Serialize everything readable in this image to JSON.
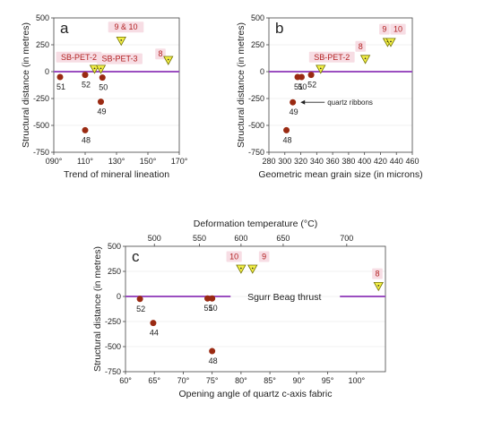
{
  "colors": {
    "thrust_line": "#9b4fc0",
    "circle_fill": "#9a2a12",
    "triangle_fill": "#f4f046",
    "triangle_stroke": "#707000",
    "label_box": "#f7dde4",
    "red_text": "#b22222",
    "axis": "#444444",
    "grid": "#e6e6e6"
  },
  "chart_data": [
    {
      "id": "a",
      "type": "scatter",
      "panel_letter": "a",
      "xlabel": "Trend of mineral lineation",
      "ylabel": "Structural distance (in metres)",
      "xlim": [
        90,
        170
      ],
      "ylim": [
        -750,
        500
      ],
      "x_ticks": [
        90,
        110,
        130,
        150,
        170
      ],
      "x_tick_labels": [
        "090°",
        "110°",
        "130°",
        "150°",
        "170°"
      ],
      "y_ticks": [
        500,
        250,
        0,
        -250,
        -500,
        -750
      ],
      "thrust_y": 0,
      "circles": [
        {
          "x": 94,
          "y": -50,
          "label": "51"
        },
        {
          "x": 110,
          "y": -30,
          "label": "52"
        },
        {
          "x": 121,
          "y": -55,
          "label": "50"
        },
        {
          "x": 120,
          "y": -280,
          "label": "49"
        },
        {
          "x": 110,
          "y": -545,
          "label": "48"
        }
      ],
      "triangles": [
        {
          "x": 116,
          "y": 18
        },
        {
          "x": 120,
          "y": 18
        },
        {
          "x": 133,
          "y": 280
        },
        {
          "x": 163,
          "y": 100
        }
      ],
      "red_labels": [
        {
          "text": "SB-PET-2",
          "x": 106,
          "y": 110
        },
        {
          "text": "SB-PET-3",
          "x": 132,
          "y": 95
        },
        {
          "text": "9 & 10",
          "x": 136,
          "y": 390
        },
        {
          "text": "8",
          "x": 158,
          "y": 140
        }
      ]
    },
    {
      "id": "b",
      "type": "scatter",
      "panel_letter": "b",
      "xlabel": "Geometric mean grain size (in microns)",
      "ylabel": "Structural distance (in metres)",
      "xlim": [
        280,
        460
      ],
      "ylim": [
        -750,
        500
      ],
      "x_ticks": [
        280,
        300,
        320,
        340,
        360,
        380,
        400,
        420,
        440,
        460
      ],
      "x_tick_labels": [
        "280",
        "300",
        "320",
        "340",
        "360",
        "380",
        "400",
        "420",
        "440",
        "460"
      ],
      "y_ticks": [
        500,
        250,
        0,
        -250,
        -500,
        -750
      ],
      "thrust_y": 0,
      "circles": [
        {
          "x": 316,
          "y": -50,
          "label": "51"
        },
        {
          "x": 321,
          "y": -50,
          "label": "50"
        },
        {
          "x": 333,
          "y": -30,
          "label": "52"
        },
        {
          "x": 310,
          "y": -285,
          "label": "49"
        },
        {
          "x": 302,
          "y": -545,
          "label": "48"
        }
      ],
      "triangles": [
        {
          "x": 345,
          "y": 18
        },
        {
          "x": 401,
          "y": 110
        },
        {
          "x": 429,
          "y": 268
        },
        {
          "x": 433,
          "y": 268
        }
      ],
      "red_labels": [
        {
          "text": "SB-PET-2",
          "x": 359,
          "y": 110
        },
        {
          "text": "8",
          "x": 395,
          "y": 210
        },
        {
          "text": "9",
          "x": 425,
          "y": 370
        },
        {
          "text": "10",
          "x": 442,
          "y": 370
        }
      ],
      "annotation": {
        "text": "quartz ribbons",
        "x": 314,
        "y": -285
      }
    },
    {
      "id": "c",
      "type": "scatter",
      "panel_letter": "c",
      "xlabel": "Opening angle of quartz c-axis fabric",
      "ylabel": "Structural distance (in metres)",
      "top_xlabel": "Deformation temperature (°C)",
      "xlim": [
        60,
        105
      ],
      "ylim": [
        -750,
        500
      ],
      "x_ticks": [
        60,
        65,
        70,
        75,
        80,
        85,
        90,
        95,
        100
      ],
      "x_tick_labels": [
        "60°",
        "65°",
        "70°",
        "75°",
        "80°",
        "85°",
        "90°",
        "95°",
        "100°"
      ],
      "top_ticks": [
        {
          "x": 65.0,
          "label": "500"
        },
        {
          "x": 72.8,
          "label": "550"
        },
        {
          "x": 80.0,
          "label": "600"
        },
        {
          "x": 87.3,
          "label": "650"
        },
        {
          "x": 98.3,
          "label": "700"
        }
      ],
      "y_ticks": [
        500,
        250,
        0,
        -250,
        -500,
        -750
      ],
      "thrust_y": 0,
      "thrust_label": "Sgurr Beag thrust",
      "circles": [
        {
          "x": 62.5,
          "y": -25,
          "label": "52"
        },
        {
          "x": 64.8,
          "y": -265,
          "label": "44"
        },
        {
          "x": 74.2,
          "y": -20,
          "label": "51"
        },
        {
          "x": 75.0,
          "y": -20,
          "label": "50"
        },
        {
          "x": 75.0,
          "y": -545,
          "label": "48"
        }
      ],
      "triangles": [
        {
          "x": 80.0,
          "y": 268
        },
        {
          "x": 82.0,
          "y": 268
        },
        {
          "x": 103.8,
          "y": 95
        }
      ],
      "red_labels": [
        {
          "text": "10",
          "x": 78.8,
          "y": 370
        },
        {
          "text": "9",
          "x": 84.0,
          "y": 370
        },
        {
          "text": "8",
          "x": 103.6,
          "y": 200
        }
      ]
    }
  ]
}
